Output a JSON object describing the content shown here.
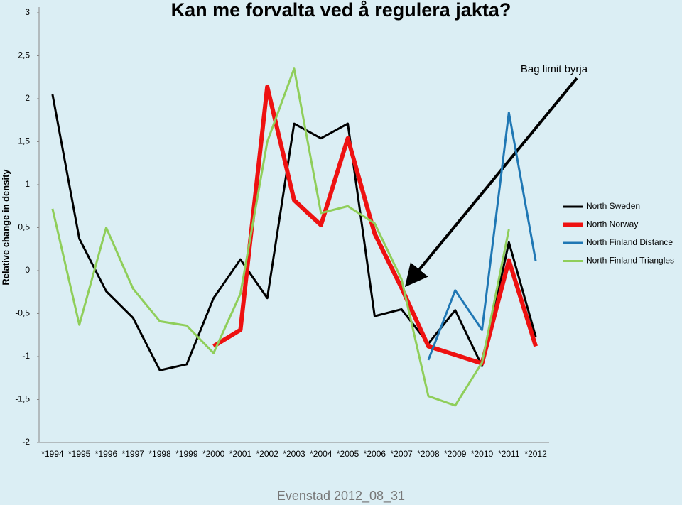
{
  "chart_data": {
    "type": "line",
    "title": "Kan me forvalta ved å regulera jakta?",
    "y_label": "Relative change in density",
    "annotation": "Bag limit byrja",
    "footer": "Evenstad 2012_08_31",
    "categories": [
      "*1994",
      "*1995",
      "*1996",
      "*1997",
      "*1998",
      "*1999",
      "*2000",
      "*2001",
      "*2002",
      "*2003",
      "*2004",
      "*2005",
      "*2006",
      "*2007",
      "*2008",
      "*2009",
      "*2010",
      "*2011",
      "*2012"
    ],
    "ylim": [
      -2,
      3
    ],
    "yticks": [
      {
        "value": -2,
        "label": "-2"
      },
      {
        "value": -1.5,
        "label": "-1,5"
      },
      {
        "value": -1,
        "label": "-1"
      },
      {
        "value": -0.5,
        "label": "-0,5"
      },
      0,
      {
        "value": 0.5,
        "label": "0,5"
      },
      1,
      {
        "value": 1.5,
        "label": "1,5"
      },
      2,
      {
        "value": 2.5,
        "label": "2,5"
      },
      3
    ],
    "series": [
      {
        "name": "North Sweden",
        "color": "#000000",
        "width": 3,
        "values": [
          2.05,
          0.37,
          -0.24,
          -0.55,
          -1.16,
          -1.09,
          -0.32,
          0.13,
          -0.32,
          1.71,
          1.54,
          1.71,
          -0.53,
          -0.45,
          -0.85,
          -0.46,
          -1.11,
          0.33,
          -0.77
        ]
      },
      {
        "name": "North Norway",
        "color": "#ee1111",
        "width": 6,
        "values": [
          null,
          null,
          null,
          null,
          null,
          null,
          -0.88,
          -0.69,
          2.14,
          0.82,
          0.53,
          1.54,
          0.43,
          -0.2,
          -0.88,
          -0.98,
          -1.08,
          0.12,
          -0.88
        ]
      },
      {
        "name": "North Finland Distance",
        "color": "#1f77b4",
        "width": 3,
        "values": [
          null,
          null,
          null,
          null,
          null,
          null,
          null,
          null,
          null,
          null,
          null,
          null,
          null,
          null,
          -1.04,
          -0.23,
          -0.69,
          1.84,
          0.11
        ]
      },
      {
        "name": "North Finland Triangles",
        "color": "#8fce5a",
        "width": 3,
        "values": [
          0.72,
          -0.63,
          0.5,
          -0.21,
          -0.59,
          -0.64,
          -0.96,
          -0.27,
          1.5,
          2.35,
          0.67,
          0.75,
          0.55,
          -0.1,
          -1.46,
          -1.57,
          -1.07,
          0.48,
          null
        ]
      }
    ]
  }
}
